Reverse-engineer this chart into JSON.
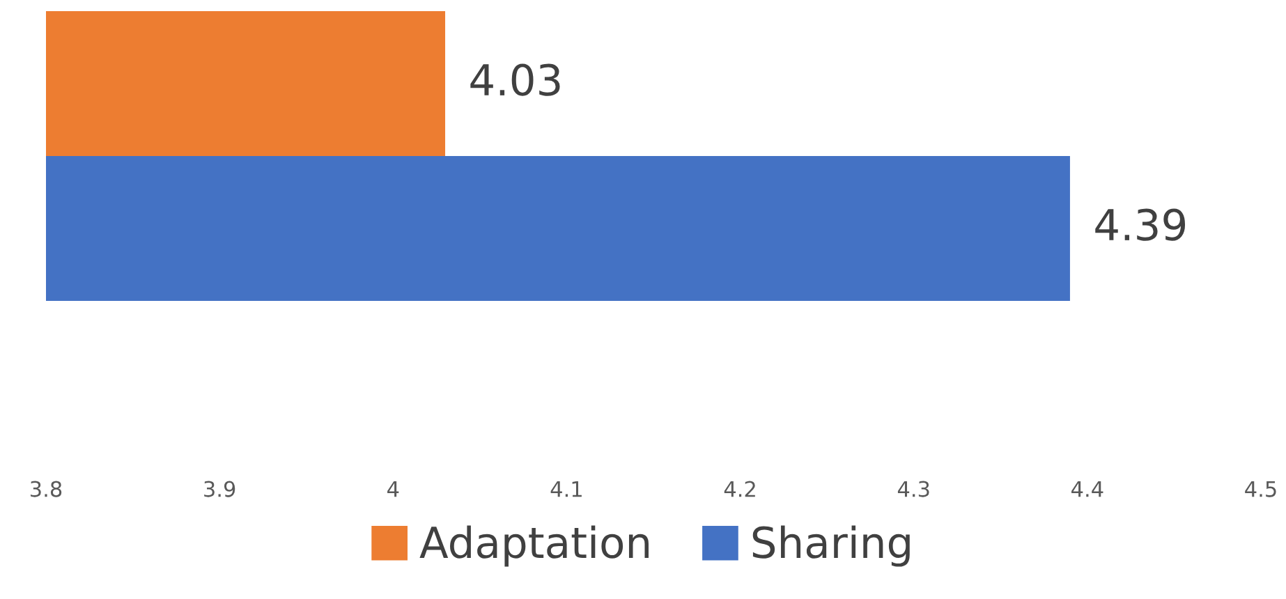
{
  "chart_data": {
    "type": "bar",
    "orientation": "horizontal",
    "categories": [
      null
    ],
    "series": [
      {
        "name": "Adaptation",
        "color": "#ed7d31",
        "values": [
          4.03
        ]
      },
      {
        "name": "Sharing",
        "color": "#4472c4",
        "values": [
          4.39
        ]
      }
    ],
    "xlim": [
      3.8,
      4.5
    ],
    "xticks": [
      3.8,
      3.9,
      4,
      4.1,
      4.2,
      4.3,
      4.4,
      4.5
    ],
    "data_labels": true,
    "legend": "bottom",
    "grid": false
  }
}
